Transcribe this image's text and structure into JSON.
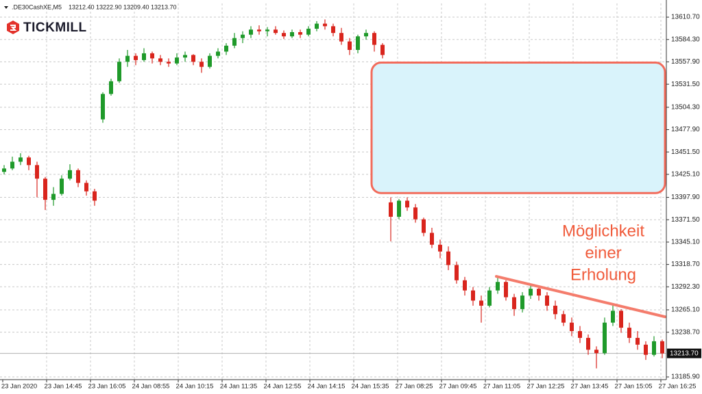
{
  "chart_data": {
    "type": "candlestick",
    "symbol": ".DE30CashXE,M5",
    "header_values": [
      "13212.40",
      "13222.90",
      "13209.40",
      "13213.70"
    ],
    "logo": "TICKMILL",
    "annotation": [
      "Möglichkeit",
      "einer",
      "Erholung"
    ],
    "up_color": "#1f9a2a",
    "down_color": "#d9251d",
    "grid": true,
    "ylim": [
      13182.7,
      13626.9
    ],
    "yticks": [
      {
        "value": 13610.7,
        "label": "13610.70"
      },
      {
        "value": 13584.3,
        "label": "13584.30"
      },
      {
        "value": 13557.9,
        "label": "13557.90"
      },
      {
        "value": 13531.5,
        "label": "13531.50"
      },
      {
        "value": 13504.3,
        "label": "13504.30"
      },
      {
        "value": 13477.9,
        "label": "13477.90"
      },
      {
        "value": 13451.5,
        "label": "13451.50"
      },
      {
        "value": 13425.1,
        "label": "13425.10"
      },
      {
        "value": 13397.9,
        "label": "13397.90"
      },
      {
        "value": 13371.5,
        "label": "13371.50"
      },
      {
        "value": 13345.1,
        "label": "13345.10"
      },
      {
        "value": 13318.7,
        "label": "13318.70"
      },
      {
        "value": 13292.3,
        "label": "13292.30"
      },
      {
        "value": 13265.1,
        "label": "13265.10"
      },
      {
        "value": 13238.7,
        "label": "13238.70"
      },
      {
        "value": 13185.9,
        "label": "13185.90"
      }
    ],
    "current_price": {
      "value": 13213.7,
      "label": "13213.70"
    },
    "categories": [
      "23 Jan 2020",
      "23 Jan 14:45",
      "23 Jan 16:05",
      "24 Jan 08:55",
      "24 Jan 10:15",
      "24 Jan 11:35",
      "24 Jan 12:55",
      "24 Jan 14:15",
      "24 Jan 15:35",
      "27 Jan 08:25",
      "27 Jan 09:45",
      "27 Jan 11:05",
      "27 Jan 12:25",
      "27 Jan 13:45",
      "27 Jan 15:05",
      "27 Jan 16:25"
    ],
    "price_zone": [
      13403,
      13557
    ],
    "zone_color": "#d9f3fb",
    "zone_border": "#f26b5b",
    "trendline": [
      13304.6,
      13256.9
    ],
    "trendline_color": "#f47c6c",
    "ohlc": [
      [
        13428,
        13436,
        13425,
        13432
      ],
      [
        13432,
        13446,
        13430,
        13440
      ],
      [
        13440,
        13450,
        13436,
        13445
      ],
      [
        13445,
        13447,
        13430,
        13436
      ],
      [
        13436,
        13440,
        13398,
        13420
      ],
      [
        13420,
        13422,
        13383,
        13395
      ],
      [
        13395,
        13410,
        13388,
        13402
      ],
      [
        13402,
        13424,
        13400,
        13420
      ],
      [
        13420,
        13437,
        13418,
        13430
      ],
      [
        13430,
        13432,
        13410,
        13415
      ],
      [
        13415,
        13418,
        13400,
        13405
      ],
      [
        13405,
        13408,
        13388,
        13394
      ],
      [
        13490,
        13522,
        13486,
        13520
      ],
      [
        13520,
        13538,
        13518,
        13535
      ],
      [
        13535,
        13562,
        13533,
        13558
      ],
      [
        13558,
        13572,
        13552,
        13565
      ],
      [
        13565,
        13568,
        13554,
        13560
      ],
      [
        13560,
        13574,
        13558,
        13568
      ],
      [
        13568,
        13570,
        13556,
        13562
      ],
      [
        13562,
        13566,
        13554,
        13558
      ],
      [
        13558,
        13562,
        13552,
        13556
      ],
      [
        13556,
        13568,
        13554,
        13563
      ],
      [
        13563,
        13570,
        13558,
        13566
      ],
      [
        13566,
        13567,
        13554,
        13558
      ],
      [
        13558,
        13562,
        13545,
        13552
      ],
      [
        13552,
        13568,
        13550,
        13565
      ],
      [
        13565,
        13574,
        13562,
        13570
      ],
      [
        13570,
        13580,
        13566,
        13577
      ],
      [
        13577,
        13592,
        13574,
        13586
      ],
      [
        13586,
        13594,
        13580,
        13590
      ],
      [
        13590,
        13600,
        13586,
        13596
      ],
      [
        13596,
        13601,
        13590,
        13594
      ],
      [
        13594,
        13599,
        13588,
        13596
      ],
      [
        13596,
        13600,
        13590,
        13592
      ],
      [
        13592,
        13595,
        13585,
        13588
      ],
      [
        13588,
        13596,
        13586,
        13593
      ],
      [
        13593,
        13596,
        13586,
        13590
      ],
      [
        13590,
        13600,
        13588,
        13597
      ],
      [
        13597,
        13606,
        13594,
        13603
      ],
      [
        13603,
        13608,
        13596,
        13600
      ],
      [
        13600,
        13603,
        13588,
        13592
      ],
      [
        13592,
        13598,
        13578,
        13582
      ],
      [
        13582,
        13586,
        13566,
        13572
      ],
      [
        13572,
        13590,
        13568,
        13588
      ],
      [
        13588,
        13596,
        13584,
        13592
      ],
      [
        13592,
        13594,
        13570,
        13578
      ],
      [
        13578,
        13580,
        13562,
        13566
      ],
      [
        13392,
        13398,
        13346,
        13375
      ],
      [
        13375,
        13396,
        13372,
        13394
      ],
      [
        13394,
        13398,
        13382,
        13386
      ],
      [
        13386,
        13390,
        13368,
        13372
      ],
      [
        13372,
        13374,
        13352,
        13356
      ],
      [
        13356,
        13362,
        13338,
        13342
      ],
      [
        13342,
        13348,
        13326,
        13334
      ],
      [
        13334,
        13340,
        13312,
        13318
      ],
      [
        13318,
        13322,
        13296,
        13300
      ],
      [
        13300,
        13304,
        13282,
        13288
      ],
      [
        13288,
        13292,
        13270,
        13276
      ],
      [
        13276,
        13282,
        13250,
        13270
      ],
      [
        13270,
        13292,
        13268,
        13288
      ],
      [
        13288,
        13304,
        13284,
        13298
      ],
      [
        13298,
        13300,
        13276,
        13280
      ],
      [
        13280,
        13284,
        13258,
        13266
      ],
      [
        13266,
        13286,
        13262,
        13282
      ],
      [
        13282,
        13296,
        13278,
        13290
      ],
      [
        13290,
        13294,
        13276,
        13282
      ],
      [
        13282,
        13286,
        13264,
        13270
      ],
      [
        13270,
        13276,
        13254,
        13260
      ],
      [
        13260,
        13264,
        13246,
        13250
      ],
      [
        13250,
        13256,
        13234,
        13240
      ],
      [
        13240,
        13246,
        13226,
        13232
      ],
      [
        13232,
        13236,
        13212,
        13218
      ],
      [
        13218,
        13222,
        13196,
        13214
      ],
      [
        13214,
        13256,
        13212,
        13250
      ],
      [
        13250,
        13272,
        13246,
        13264
      ],
      [
        13264,
        13266,
        13238,
        13244
      ],
      [
        13244,
        13250,
        13226,
        13232
      ],
      [
        13232,
        13240,
        13218,
        13224
      ],
      [
        13224,
        13228,
        13206,
        13212
      ],
      [
        13212,
        13234,
        13210,
        13228
      ],
      [
        13228,
        13230,
        13208,
        13213.7
      ]
    ]
  }
}
